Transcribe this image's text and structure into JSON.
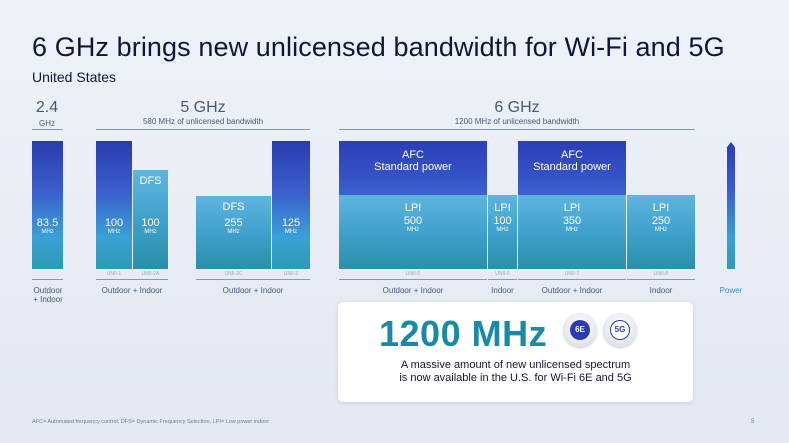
{
  "title": "6 GHz brings new unlicensed bandwidth for Wi-Fi and 5G",
  "subtitle": "United States",
  "bands": {
    "b24": {
      "name": "2.4",
      "unit": "GHz"
    },
    "b5": {
      "name": "5 GHz",
      "desc": "580 MHz of unlicensed bandwidth"
    },
    "b6": {
      "name": "6 GHz",
      "desc": "1200 MHz of unlicensed bandwidth"
    }
  },
  "blocks": {
    "b24": {
      "value": "83.5",
      "unit": "MHz"
    },
    "u1": {
      "value": "100",
      "unit": "MHz",
      "unii": "UNII-1"
    },
    "u2a": {
      "type": "DFS",
      "value": "100",
      "unit": "MHz",
      "unii": "UNII-2A"
    },
    "u2c": {
      "type": "DFS",
      "value": "255",
      "unit": "MHz",
      "unii": "UNII-2C"
    },
    "u3": {
      "value": "125",
      "unit": "MHz",
      "unii": "UNII-3"
    },
    "u5": {
      "top": "AFC",
      "top2": "Standard power",
      "type": "LPI",
      "value": "500",
      "unit": "MHz",
      "unii": "UNII-5"
    },
    "u6": {
      "type": "LPI",
      "value": "100",
      "unit": "MHz",
      "unii": "UNII-6"
    },
    "u7": {
      "top": "AFC",
      "top2": "Standard power",
      "type": "LPI",
      "value": "350",
      "unit": "MHz",
      "unii": "UNII-7"
    },
    "u8": {
      "type": "LPI",
      "value": "250",
      "unit": "MHz",
      "unii": "UNII-8"
    }
  },
  "usage": {
    "b24": "Outdoor\n+ Indoor",
    "u12a": "Outdoor + Indoor",
    "u2c3": "Outdoor + Indoor",
    "u5": "Outdoor + Indoor",
    "u6": "Indoor",
    "u7": "Outdoor + Indoor",
    "u8": "Indoor"
  },
  "power_label": "Power",
  "callout": {
    "value": "1200 MHz",
    "desc1": "A massive amount of new unlicensed spectrum",
    "desc2": "is now available in the U.S. for Wi-Fi 6E and 5G",
    "badge1": "6E",
    "badge2": "5G"
  },
  "footnote": "AFC= Automated frequency control, DFS= Dynamic Frequency Selection, LPI= Low power indoor",
  "page_number": "5",
  "colors": {
    "teal": "#3d9fc9",
    "blue": "#2c3fb5",
    "accent": "#178aa8"
  }
}
